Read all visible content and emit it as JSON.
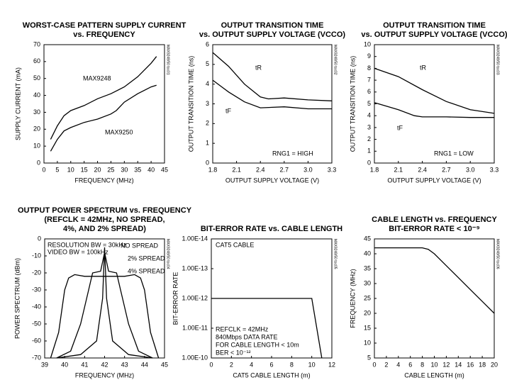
{
  "chart_data": [
    {
      "type": "line",
      "id": "MAX9248/50 toc01",
      "title": [
        "WORST-CASE PATTERN SUPPLY CURRENT",
        "vs. FREQUENCY"
      ],
      "x_label": "FREQUENCY (MHz)",
      "y_label": "SUPPLY CURRENT (mA)",
      "xlim": [
        0,
        45
      ],
      "xticks": [
        0,
        5,
        10,
        15,
        20,
        25,
        30,
        35,
        40,
        45
      ],
      "ylim": [
        0,
        70
      ],
      "yticks": [
        0,
        10,
        20,
        30,
        40,
        50,
        60,
        70
      ],
      "series": [
        {
          "name": "MAX9248",
          "color": "#000000",
          "x": [
            2.5,
            5,
            7.5,
            10,
            15,
            20,
            25,
            30,
            35,
            40,
            42
          ],
          "values": [
            14,
            22,
            28,
            31,
            34,
            38,
            41,
            45,
            51,
            59,
            63
          ]
        },
        {
          "name": "MAX9250",
          "color": "#000000",
          "x": [
            2.5,
            5,
            7.5,
            10,
            15,
            20,
            25,
            27,
            30,
            35,
            40,
            42
          ],
          "values": [
            7,
            14,
            19,
            21,
            24,
            26,
            29,
            31,
            36,
            41,
            45,
            46
          ]
        }
      ]
    },
    {
      "type": "line",
      "id": "MAX9248/50 toc02",
      "title": [
        "OUTPUT TRANSITION TIME",
        "vs. OUTPUT SUPPLY VOLTAGE (VCCO)"
      ],
      "x_label": "OUTPUT SUPPLY VOLTAGE (V)",
      "y_label": "OUTPUT TRANSITION TIME (ns)",
      "xlim": [
        1.8,
        3.3
      ],
      "xticks": [
        1.8,
        2.1,
        2.4,
        2.7,
        {
          "value": 3,
          "label": "3.0"
        },
        3.3
      ],
      "ylim": [
        0,
        6
      ],
      "yticks": [
        0,
        1,
        2,
        3,
        4,
        5,
        6
      ],
      "annotations": [
        "RNG1 = HIGH"
      ],
      "series": [
        {
          "name": "tR",
          "color": "#000000",
          "x": [
            1.8,
            2.0,
            2.2,
            2.4,
            2.5,
            2.7,
            3.0,
            3.3
          ],
          "values": [
            5.6,
            4.9,
            4.0,
            3.35,
            3.25,
            3.3,
            3.2,
            3.15
          ]
        },
        {
          "name": "tF",
          "color": "#000000",
          "x": [
            1.8,
            2.0,
            2.2,
            2.4,
            2.7,
            3.0,
            3.3
          ],
          "values": [
            4.2,
            3.6,
            3.1,
            2.8,
            2.85,
            2.75,
            2.75
          ]
        }
      ]
    },
    {
      "type": "line",
      "id": "MAX9248/50 toc03",
      "title": [
        "OUTPUT TRANSITION TIME",
        "vs. OUTPUT SUPPLY VOLTAGE (VCCO)"
      ],
      "x_label": "OUTPUT SUPPLY VOLTAGE (V)",
      "y_label": "OUTPUT TRANSITION TIME (ns)",
      "xlim": [
        1.8,
        3.3
      ],
      "xticks": [
        1.8,
        2.1,
        2.4,
        2.7,
        {
          "value": 3,
          "label": "3.0"
        },
        3.3
      ],
      "ylim": [
        0,
        10
      ],
      "yticks": [
        0,
        1,
        2,
        3,
        4,
        5,
        6,
        7,
        8,
        9,
        10
      ],
      "annotations": [
        "RNG1 = LOW"
      ],
      "series": [
        {
          "name": "tR",
          "color": "#000000",
          "x": [
            1.8,
            2.1,
            2.4,
            2.7,
            3.0,
            3.3
          ],
          "values": [
            8.0,
            7.3,
            6.2,
            5.2,
            4.5,
            4.2
          ]
        },
        {
          "name": "tF",
          "color": "#000000",
          "x": [
            1.8,
            2.1,
            2.3,
            2.4,
            2.7,
            3.0,
            3.3
          ],
          "values": [
            5.1,
            4.5,
            4.0,
            3.9,
            3.9,
            3.85,
            3.85
          ]
        }
      ]
    },
    {
      "type": "line",
      "id": "MAX9248/50 toc04",
      "title": [
        "OUTPUT POWER SPECTRUM vs. FREQUENCY",
        "(REFCLK = 42MHz, NO SPREAD,",
        "4%, AND 2% SPREAD)"
      ],
      "x_label": "FREQUENCY (MHz)",
      "y_label": "POWER SPECTRUM (dBm)",
      "xlim": [
        39,
        45
      ],
      "xticks": [
        39,
        40,
        41,
        42,
        43,
        44,
        45
      ],
      "ylim": [
        -70,
        0
      ],
      "yticks": [
        -70,
        -60,
        -50,
        -40,
        -30,
        -20,
        -10,
        0
      ],
      "annotations": [
        "RESOLUTION BW = 30kHz",
        "VIDEO BW = 100kHz"
      ],
      "series": [
        {
          "name": "NO SPREAD",
          "color": "#000000",
          "x": [
            39.6,
            40.8,
            41.6,
            41.9,
            42,
            42.1,
            42.4,
            43.2,
            44.4
          ],
          "values": [
            -70,
            -68,
            -60,
            -35,
            -5,
            -35,
            -60,
            -68,
            -70
          ]
        },
        {
          "name": "2% SPREAD",
          "color": "#000000",
          "x": [
            39.6,
            40.3,
            40.8,
            41.2,
            41.4,
            41.8,
            42,
            42.2,
            42.6,
            42.8,
            43.2,
            43.7,
            44.4
          ],
          "values": [
            -70,
            -66,
            -50,
            -30,
            -20,
            -19,
            -8,
            -19,
            -20,
            -30,
            -50,
            -66,
            -70
          ]
        },
        {
          "name": "4% SPREAD",
          "color": "#000000",
          "x": [
            39.3,
            39.7,
            40.0,
            40.2,
            40.5,
            41,
            42,
            43,
            43.5,
            43.8,
            44,
            44.3,
            44.7
          ],
          "values": [
            -70,
            -55,
            -30,
            -23,
            -21,
            -22,
            -22,
            -22,
            -21,
            -23,
            -30,
            -55,
            -70
          ]
        }
      ]
    },
    {
      "type": "line",
      "id": "MAX9248/50 toc05",
      "title": [
        "BIT-ERROR RATE vs. CABLE LENGTH"
      ],
      "x_label": "CAT5 CABLE LENGTH (m)",
      "y_label": "BIT-ERROR RATE",
      "log_y": true,
      "xlim": [
        0,
        12
      ],
      "xticks": [
        0,
        2,
        4,
        6,
        8,
        10,
        12
      ],
      "ylim": [
        1e-10,
        1e-14
      ],
      "yticks": [
        {
          "value": 1e-10,
          "label": "1.00E-10"
        },
        {
          "value": 1e-11,
          "label": "1.00E-11"
        },
        {
          "value": 1e-12,
          "label": "1.00E-12"
        },
        {
          "value": 1e-13,
          "label": "1.00E-13"
        },
        {
          "value": 1e-14,
          "label": "1.00E-14"
        }
      ],
      "annotations": [
        "CAT5 CABLE",
        "REFCLK = 42MHz",
        "840Mbps DATA RATE",
        "FOR CABLE LENGTH < 10m",
        "BER < 10⁻¹²"
      ],
      "series": [
        {
          "color": "#000000",
          "x": [
            0,
            10,
            11
          ],
          "values": [
            1e-12,
            1e-12,
            1e-10
          ]
        }
      ]
    },
    {
      "type": "line",
      "id": "MAX9248/50 toc06",
      "title": [
        "CABLE LENGTH vs. FREQUENCY",
        "BIT-ERROR RATE < 10⁻⁹"
      ],
      "x_label": "CABLE LENGTH (m)",
      "y_label": "FREQUENCY (MHz)",
      "xlim": [
        0,
        20
      ],
      "xticks": [
        0,
        2,
        4,
        6,
        8,
        10,
        12,
        14,
        16,
        18,
        20
      ],
      "ylim": [
        5,
        45
      ],
      "yticks": [
        5,
        10,
        15,
        20,
        25,
        30,
        35,
        40,
        45
      ],
      "series": [
        {
          "color": "#000000",
          "x": [
            0,
            2,
            4,
            6,
            8,
            9,
            10,
            12,
            14,
            16,
            18,
            20
          ],
          "values": [
            42,
            42,
            42,
            42,
            42,
            41.5,
            40,
            36,
            32,
            28,
            24,
            20
          ]
        }
      ]
    }
  ]
}
